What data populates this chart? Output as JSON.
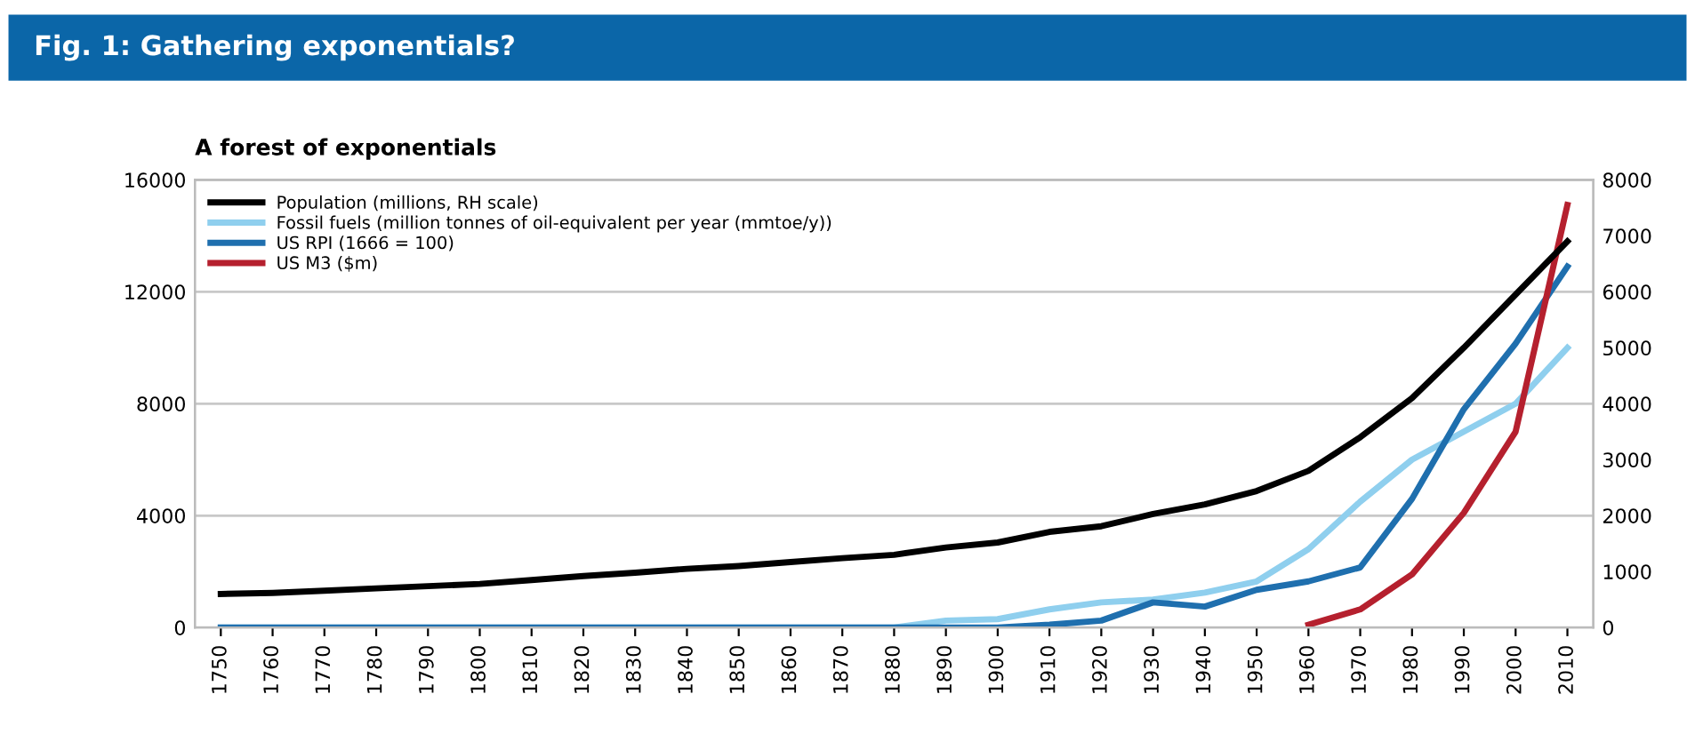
{
  "chart_data": {
    "type": "line",
    "title": "Fig. 1: Gathering exponentials?",
    "subtitle": "A forest of exponentials",
    "categories": [
      "1750",
      "1760",
      "1770",
      "1780",
      "1790",
      "1800",
      "1810",
      "1820",
      "1830",
      "1840",
      "1850",
      "1860",
      "1870",
      "1880",
      "1890",
      "1900",
      "1910",
      "1920",
      "1930",
      "1940",
      "1950",
      "1960",
      "1970",
      "1980",
      "1990",
      "2000",
      "2010"
    ],
    "series": [
      {
        "name": "Population (millions, RH scale)",
        "color": "#000000",
        "axis": "y2",
        "values": [
          600,
          620,
          660,
          700,
          740,
          780,
          850,
          920,
          980,
          1050,
          1100,
          1170,
          1240,
          1300,
          1430,
          1520,
          1710,
          1810,
          2030,
          2200,
          2440,
          2800,
          3400,
          4100,
          5000,
          5950,
          6900
        ]
      },
      {
        "name": "Fossil fuels (million tonnes of oil-equivalent per year (mmtoe/y))",
        "color": "#8fcfee",
        "values": [
          0,
          0,
          0,
          0,
          0,
          0,
          0,
          0,
          0,
          0,
          0,
          0,
          0,
          0,
          250,
          300,
          650,
          900,
          1000,
          1250,
          1650,
          2800,
          4500,
          6000,
          7000,
          8000,
          10000
        ]
      },
      {
        "name": "US RPI (1666 = 100)",
        "color": "#1f6fae",
        "values": [
          0,
          0,
          0,
          0,
          0,
          0,
          0,
          0,
          0,
          0,
          0,
          0,
          0,
          0,
          0,
          0,
          100,
          250,
          900,
          750,
          1350,
          1650,
          2150,
          4600,
          7800,
          10150,
          12900
        ]
      },
      {
        "name": "US M3 ($m)",
        "color": "#b5202e",
        "values": [
          null,
          null,
          null,
          null,
          null,
          null,
          null,
          null,
          null,
          null,
          null,
          null,
          null,
          null,
          null,
          null,
          null,
          null,
          null,
          null,
          null,
          100,
          650,
          1900,
          4100,
          7000,
          15100
        ]
      }
    ],
    "ylim": [
      0,
      16000
    ],
    "yticks": [
      0,
      4000,
      8000,
      12000,
      16000
    ],
    "y2lim": [
      0,
      8000
    ],
    "y2ticks": [
      0,
      1000,
      2000,
      3000,
      4000,
      5000,
      6000,
      7000,
      8000
    ],
    "grid": "y",
    "legend": "top left",
    "marker": "none",
    "line_style": "solid"
  }
}
